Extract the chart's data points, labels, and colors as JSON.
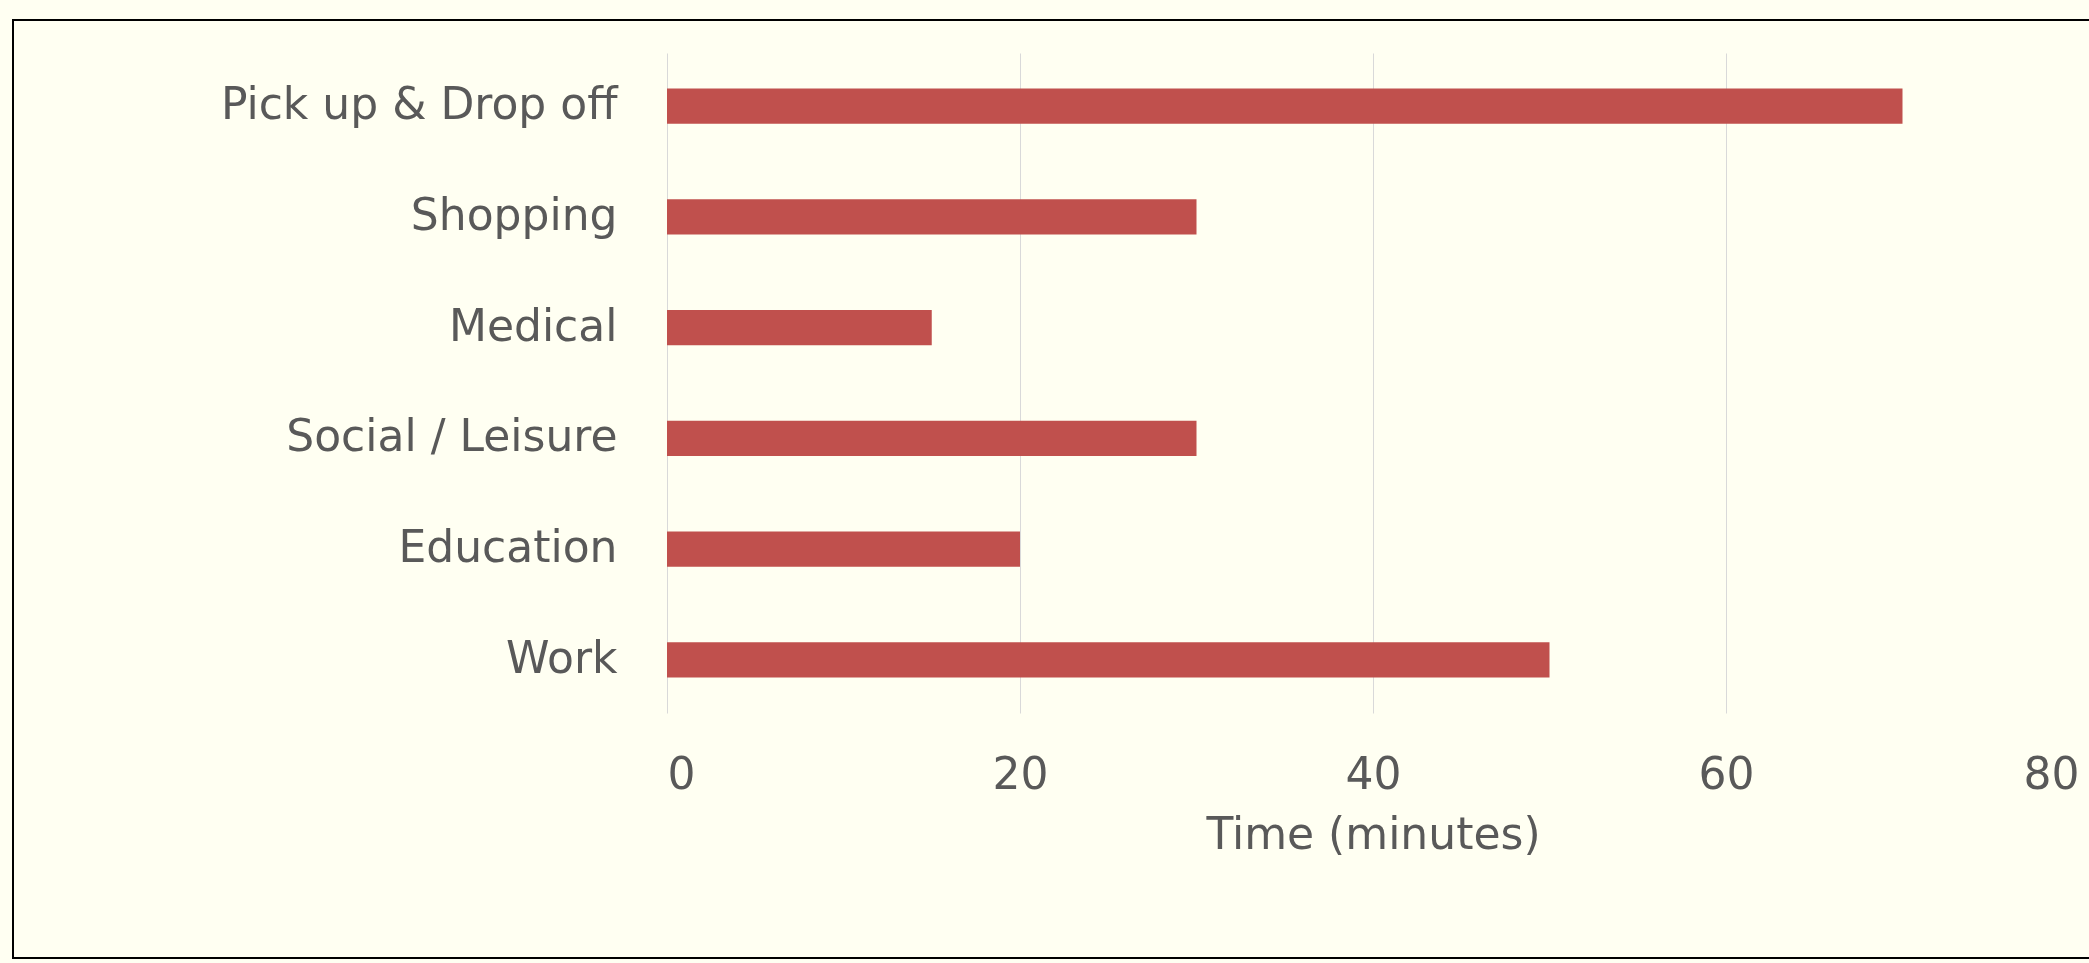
{
  "chart_data": {
    "type": "bar",
    "orientation": "horizontal",
    "xlabel": "Time (minutes)",
    "categories": [
      "Pick up & Drop off",
      "Shopping",
      "Medical",
      "Social / Leisure",
      "Education",
      "Work"
    ],
    "values": [
      70,
      30,
      15,
      30,
      20,
      50
    ],
    "color": "#c0504d",
    "xlim": [
      0,
      80
    ],
    "xticks": [
      0,
      20,
      40,
      60,
      80
    ],
    "grid": "x"
  }
}
